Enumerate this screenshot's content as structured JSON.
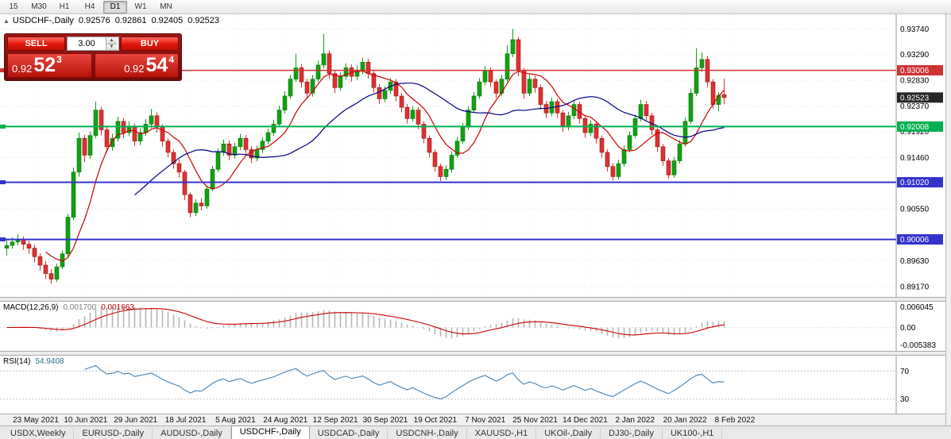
{
  "toolbar": {
    "periods": [
      "15",
      "M30",
      "H1",
      "H4",
      "D1",
      "W1",
      "MN"
    ],
    "active_period": "D1"
  },
  "chart": {
    "title_symbol": "USDCHF-,Daily",
    "open": "0.92576",
    "high": "0.92861",
    "low": "0.92405",
    "close": "0.92523",
    "price_axis": {
      "ticks": [
        "0.93740",
        "0.93290",
        "0.92830",
        "0.92370",
        "0.91920",
        "0.91460",
        "0.90550",
        "0.89630",
        "0.89170"
      ],
      "badges": [
        {
          "text": "0.93006",
          "color": "#cd3333"
        },
        {
          "text": "0.92523",
          "color": "#262626"
        },
        {
          "text": "0.92008",
          "color": "#00b050"
        },
        {
          "text": "0.91020",
          "color": "#3333cc"
        },
        {
          "text": "0.90006",
          "color": "#3333cc"
        }
      ]
    }
  },
  "trade_panel": {
    "sell_label": "SELL",
    "buy_label": "BUY",
    "amount": "3.00",
    "sell_price": {
      "prefix": "0.92",
      "big": "52",
      "sup": "3"
    },
    "buy_price": {
      "prefix": "0.92",
      "big": "54",
      "sup": "4"
    }
  },
  "macd": {
    "label": "MACD(12,26,9)",
    "value_main": "0.001700",
    "value_signal": "0.001663",
    "axis_top": "0.006045",
    "axis_zero": "0.00",
    "axis_bottom": "-0.005383",
    "histogram_color": "#b6b6b6",
    "signal_color": "#cc0000"
  },
  "rsi": {
    "label": "RSI(14)",
    "value": "54.9408",
    "level_upper": "70",
    "level_lower": "30",
    "line_color": "#4682b4"
  },
  "tabs": {
    "items": [
      "USDX,Weekly",
      "EURUSD-,Daily",
      "AUDUSD-,Daily",
      "USDCHF-,Daily",
      "USDCAD-,Daily",
      "USDCNH-,Daily",
      "XAUUSD-,H1",
      "UKOil-,Daily",
      "DJ30-,Daily",
      "UK100-,H1"
    ],
    "active_index": 3
  },
  "chart_data": {
    "type": "candlestick",
    "title": "USDCHF-,Daily",
    "x_labels": [
      "23 May 2021",
      "10 Jun 2021",
      "29 Jun 2021",
      "18 Jul 2021",
      "5 Aug 2021",
      "24 Aug 2021",
      "12 Sep 2021",
      "30 Sep 2021",
      "19 Oct 2021",
      "7 Nov 2021",
      "25 Nov 2021",
      "14 Dec 2021",
      "2 Jan 2022",
      "20 Jan 2022",
      "8 Feb 2022"
    ],
    "ylim": [
      0.8899,
      0.94
    ],
    "up_color": "#12a012",
    "down_color": "#e03030",
    "candles": [
      [
        0.8985,
        0.9,
        0.8972,
        0.899
      ],
      [
        0.899,
        0.9004,
        0.8984,
        0.8996
      ],
      [
        0.8996,
        0.901,
        0.899,
        0.9
      ],
      [
        0.9,
        0.9006,
        0.8982,
        0.8992
      ],
      [
        0.8992,
        0.8998,
        0.8975,
        0.8985
      ],
      [
        0.8985,
        0.8991,
        0.896,
        0.897
      ],
      [
        0.897,
        0.8976,
        0.8945,
        0.8955
      ],
      [
        0.8955,
        0.8962,
        0.893,
        0.894
      ],
      [
        0.894,
        0.8948,
        0.8922,
        0.893
      ],
      [
        0.893,
        0.8958,
        0.8925,
        0.8952
      ],
      [
        0.8952,
        0.8981,
        0.8948,
        0.8975
      ],
      [
        0.8975,
        0.9046,
        0.897,
        0.904
      ],
      [
        0.904,
        0.9128,
        0.9035,
        0.912
      ],
      [
        0.912,
        0.919,
        0.9112,
        0.918
      ],
      [
        0.918,
        0.9186,
        0.9138,
        0.915
      ],
      [
        0.915,
        0.9192,
        0.9144,
        0.9185
      ],
      [
        0.9185,
        0.9245,
        0.918,
        0.923
      ],
      [
        0.923,
        0.9236,
        0.9185,
        0.9195
      ],
      [
        0.9195,
        0.92,
        0.9155,
        0.9165
      ],
      [
        0.9165,
        0.9188,
        0.9158,
        0.918
      ],
      [
        0.918,
        0.9218,
        0.9174,
        0.921
      ],
      [
        0.921,
        0.9216,
        0.918,
        0.919
      ],
      [
        0.919,
        0.921,
        0.9184,
        0.92
      ],
      [
        0.92,
        0.9206,
        0.9166,
        0.9175
      ],
      [
        0.9175,
        0.9198,
        0.9168,
        0.919
      ],
      [
        0.919,
        0.9214,
        0.9184,
        0.9205
      ],
      [
        0.9205,
        0.9232,
        0.9198,
        0.922
      ],
      [
        0.922,
        0.9226,
        0.919,
        0.92
      ],
      [
        0.92,
        0.9205,
        0.9165,
        0.9175
      ],
      [
        0.9175,
        0.918,
        0.9146,
        0.9155
      ],
      [
        0.9155,
        0.916,
        0.9126,
        0.9135
      ],
      [
        0.9135,
        0.9142,
        0.911,
        0.912
      ],
      [
        0.912,
        0.9124,
        0.907,
        0.908
      ],
      [
        0.908,
        0.9084,
        0.904,
        0.9048
      ],
      [
        0.9048,
        0.9072,
        0.9042,
        0.9065
      ],
      [
        0.9065,
        0.9074,
        0.9052,
        0.906
      ],
      [
        0.906,
        0.9096,
        0.9055,
        0.909
      ],
      [
        0.909,
        0.9131,
        0.9086,
        0.9125
      ],
      [
        0.9125,
        0.9162,
        0.912,
        0.9155
      ],
      [
        0.9155,
        0.9178,
        0.9149,
        0.917
      ],
      [
        0.917,
        0.9176,
        0.9141,
        0.915
      ],
      [
        0.915,
        0.9172,
        0.9144,
        0.9165
      ],
      [
        0.9165,
        0.9188,
        0.9159,
        0.918
      ],
      [
        0.918,
        0.9186,
        0.9151,
        0.916
      ],
      [
        0.916,
        0.9166,
        0.9136,
        0.9145
      ],
      [
        0.9145,
        0.9167,
        0.9139,
        0.916
      ],
      [
        0.916,
        0.9182,
        0.9154,
        0.9175
      ],
      [
        0.9175,
        0.9197,
        0.9169,
        0.919
      ],
      [
        0.919,
        0.9213,
        0.9184,
        0.9205
      ],
      [
        0.9205,
        0.9238,
        0.92,
        0.923
      ],
      [
        0.923,
        0.9263,
        0.9224,
        0.9255
      ],
      [
        0.9255,
        0.9292,
        0.925,
        0.9285
      ],
      [
        0.9285,
        0.933,
        0.928,
        0.9305
      ],
      [
        0.9305,
        0.9312,
        0.927,
        0.928
      ],
      [
        0.928,
        0.9286,
        0.925,
        0.926
      ],
      [
        0.926,
        0.9292,
        0.9254,
        0.9285
      ],
      [
        0.9285,
        0.9318,
        0.928,
        0.931
      ],
      [
        0.931,
        0.9365,
        0.9304,
        0.933
      ],
      [
        0.933,
        0.9336,
        0.9285,
        0.9295
      ],
      [
        0.9295,
        0.93,
        0.926,
        0.927
      ],
      [
        0.927,
        0.9297,
        0.9264,
        0.929
      ],
      [
        0.929,
        0.9313,
        0.9284,
        0.9305
      ],
      [
        0.9305,
        0.9311,
        0.928,
        0.929
      ],
      [
        0.929,
        0.9309,
        0.9283,
        0.93
      ],
      [
        0.93,
        0.9323,
        0.9294,
        0.9315
      ],
      [
        0.9315,
        0.9321,
        0.9286,
        0.9295
      ],
      [
        0.9295,
        0.93,
        0.9261,
        0.927
      ],
      [
        0.927,
        0.9276,
        0.9241,
        0.925
      ],
      [
        0.925,
        0.9272,
        0.9244,
        0.9265
      ],
      [
        0.9265,
        0.9287,
        0.9259,
        0.928
      ],
      [
        0.928,
        0.9285,
        0.9246,
        0.9255
      ],
      [
        0.9255,
        0.9261,
        0.9226,
        0.9235
      ],
      [
        0.9235,
        0.9241,
        0.9206,
        0.9215
      ],
      [
        0.9215,
        0.9237,
        0.9209,
        0.923
      ],
      [
        0.923,
        0.9235,
        0.9196,
        0.9205
      ],
      [
        0.9205,
        0.921,
        0.9171,
        0.918
      ],
      [
        0.918,
        0.9185,
        0.9146,
        0.9155
      ],
      [
        0.9155,
        0.916,
        0.9121,
        0.913
      ],
      [
        0.913,
        0.9135,
        0.9104,
        0.9112
      ],
      [
        0.9112,
        0.9132,
        0.9106,
        0.9125
      ],
      [
        0.9125,
        0.9157,
        0.9119,
        0.915
      ],
      [
        0.915,
        0.9182,
        0.9145,
        0.9175
      ],
      [
        0.9175,
        0.9207,
        0.917,
        0.92
      ],
      [
        0.92,
        0.9237,
        0.9195,
        0.923
      ],
      [
        0.923,
        0.9262,
        0.9225,
        0.9255
      ],
      [
        0.9255,
        0.9287,
        0.925,
        0.928
      ],
      [
        0.928,
        0.9308,
        0.9274,
        0.93
      ],
      [
        0.93,
        0.9306,
        0.9271,
        0.928
      ],
      [
        0.928,
        0.9285,
        0.9251,
        0.926
      ],
      [
        0.926,
        0.9292,
        0.9255,
        0.9285
      ],
      [
        0.9285,
        0.9345,
        0.928,
        0.933
      ],
      [
        0.933,
        0.9374,
        0.9324,
        0.9355
      ],
      [
        0.9355,
        0.936,
        0.929,
        0.93
      ],
      [
        0.93,
        0.9305,
        0.925,
        0.926
      ],
      [
        0.926,
        0.9293,
        0.9255,
        0.9285
      ],
      [
        0.9285,
        0.9291,
        0.9261,
        0.927
      ],
      [
        0.927,
        0.9275,
        0.9231,
        0.924
      ],
      [
        0.924,
        0.9246,
        0.9216,
        0.9225
      ],
      [
        0.9225,
        0.9252,
        0.9219,
        0.9245
      ],
      [
        0.9245,
        0.925,
        0.9216,
        0.9225
      ],
      [
        0.9225,
        0.923,
        0.9191,
        0.92
      ],
      [
        0.92,
        0.9227,
        0.9194,
        0.922
      ],
      [
        0.922,
        0.9247,
        0.9214,
        0.924
      ],
      [
        0.924,
        0.9245,
        0.9206,
        0.9215
      ],
      [
        0.9215,
        0.922,
        0.9181,
        0.919
      ],
      [
        0.919,
        0.9212,
        0.9184,
        0.9205
      ],
      [
        0.9205,
        0.921,
        0.9171,
        0.918
      ],
      [
        0.918,
        0.9185,
        0.9146,
        0.9155
      ],
      [
        0.9155,
        0.916,
        0.9121,
        0.913
      ],
      [
        0.913,
        0.9136,
        0.9105,
        0.9112
      ],
      [
        0.9112,
        0.9142,
        0.9107,
        0.9135
      ],
      [
        0.9135,
        0.9167,
        0.913,
        0.916
      ],
      [
        0.916,
        0.9192,
        0.9155,
        0.9185
      ],
      [
        0.9185,
        0.9222,
        0.918,
        0.9215
      ],
      [
        0.9215,
        0.9248,
        0.921,
        0.924
      ],
      [
        0.924,
        0.9246,
        0.9211,
        0.922
      ],
      [
        0.922,
        0.9225,
        0.9186,
        0.9195
      ],
      [
        0.9195,
        0.92,
        0.9156,
        0.9165
      ],
      [
        0.9165,
        0.917,
        0.9131,
        0.914
      ],
      [
        0.914,
        0.9145,
        0.9108,
        0.9115
      ],
      [
        0.9115,
        0.9147,
        0.911,
        0.914
      ],
      [
        0.914,
        0.9177,
        0.9135,
        0.917
      ],
      [
        0.917,
        0.9217,
        0.9165,
        0.921
      ],
      [
        0.921,
        0.9268,
        0.9205,
        0.926
      ],
      [
        0.926,
        0.934,
        0.9255,
        0.9305
      ],
      [
        0.9305,
        0.9332,
        0.9298,
        0.932
      ],
      [
        0.932,
        0.9326,
        0.927,
        0.928
      ],
      [
        0.928,
        0.9285,
        0.9232,
        0.924
      ],
      [
        0.924,
        0.9262,
        0.9228,
        0.9256
      ],
      [
        0.92576,
        0.92861,
        0.92405,
        0.92523
      ]
    ],
    "overlays": [
      {
        "name": "fast-ma",
        "period": 8,
        "color": "#cc0000"
      },
      {
        "name": "slow-ma",
        "period": 24,
        "color": "#000080"
      }
    ],
    "hlines": [
      {
        "price": 0.93006,
        "color": "#cd3333",
        "width": 1.5
      },
      {
        "price": 0.92008,
        "color": "#00b050",
        "width": 2
      },
      {
        "price": 0.9102,
        "color": "#3333cc",
        "width": 2
      },
      {
        "price": 0.90006,
        "color": "#3333cc",
        "width": 2
      }
    ],
    "indicators": [
      {
        "type": "macd",
        "params": [
          12,
          26,
          9
        ],
        "range": [
          -0.005383,
          0.006045
        ]
      },
      {
        "type": "rsi",
        "params": [
          14
        ],
        "levels": [
          70,
          30
        ]
      }
    ]
  }
}
